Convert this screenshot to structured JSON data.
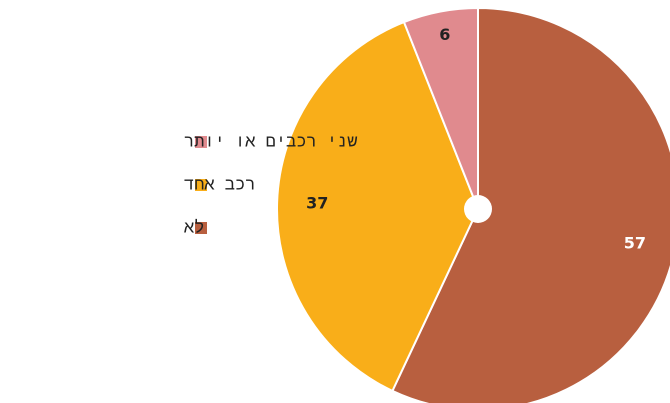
{
  "chart_data": {
    "type": "pie",
    "categories": [
      "לא",
      "רכב אחד",
      "שני רכבים או יותר"
    ],
    "values": [
      57,
      37,
      6
    ],
    "colors": [
      "#b85f3f",
      "#f9ae19",
      "#e08a8e"
    ]
  }
}
